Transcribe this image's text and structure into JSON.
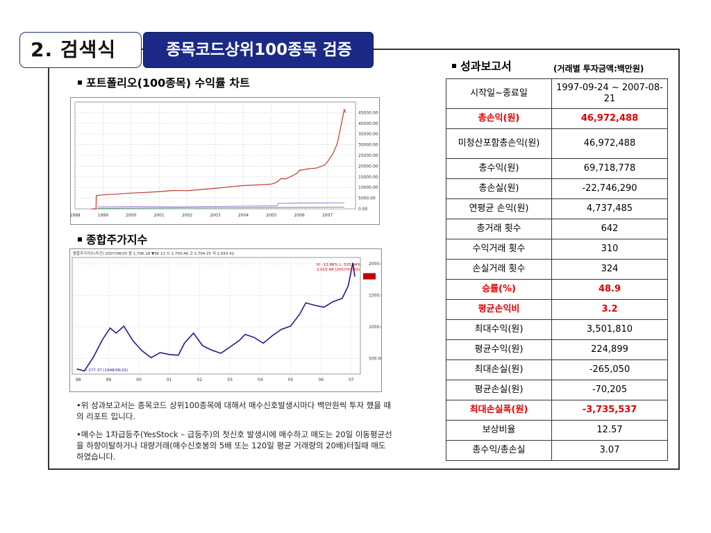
{
  "header": {
    "title": "2. 검색식",
    "banner": "종목코드상위100종목 검증"
  },
  "portfolio": {
    "label": "포트폴리오(100종목) 수익률 차트",
    "chart_data": {
      "type": "line",
      "title": "",
      "xlabel": "",
      "ylabel": "",
      "x_tick_labels": [
        "1998",
        "1999",
        "2000",
        "2001",
        "2002",
        "2003",
        "2004",
        "2005",
        "2006",
        "2007"
      ],
      "y_tick_labels": [
        "45000.00",
        "40000.00",
        "35000.00",
        "30000.00",
        "25000.00",
        "20000.00",
        "15000.00",
        "10000.00",
        "5000.00",
        "0.00"
      ],
      "ylim": [
        0,
        50000
      ],
      "xlim": [
        1998,
        2008
      ],
      "series": [
        {
          "x": [
            1998.6,
            1998.75,
            1998.76,
            1999.0,
            1999.5,
            2000.0,
            2000.5,
            2001.0,
            2001.5,
            2002.0,
            2002.5,
            2003.0,
            2003.5,
            2004.0,
            2004.5,
            2005.0,
            2005.2,
            2005.35,
            2005.5,
            2005.7,
            2005.9,
            2006.0,
            2006.3,
            2006.6,
            2006.9,
            2007.0,
            2007.2,
            2007.35,
            2007.5,
            2007.6,
            2007.65
          ],
          "y": [
            0,
            0,
            6200,
            6600,
            6900,
            7400,
            7700,
            8100,
            8600,
            8500,
            9100,
            9600,
            10300,
            10900,
            11200,
            11600,
            12500,
            14200,
            14000,
            15200,
            16500,
            18000,
            18700,
            19100,
            20500,
            22000,
            26000,
            30500,
            40000,
            46500,
            45000
          ]
        },
        {
          "x": [
            1998.8,
            2000,
            2002,
            2004,
            2006,
            2007.6
          ],
          "y": [
            200,
            400,
            500,
            600,
            700,
            800
          ]
        },
        {
          "x": [
            1998.8,
            2000,
            2002,
            2004,
            2005.2,
            2005.25,
            2006,
            2007.6
          ],
          "y": [
            900,
            1100,
            1000,
            1300,
            1400,
            2600,
            2700,
            2900
          ]
        }
      ]
    }
  },
  "kospi": {
    "label": "종합주가지수",
    "info_text": "종합주가지수(주간) 2007/08/20  종 1,796.18 ▼96.11  시 1,700.48 고 1,794.25 저 1,693.42",
    "hi_text": "H: -13.86%  L: 525.94%",
    "hi_text2": "2,015.48 (2007/07/20)",
    "low_text": "← 277.37 (1998/06/15)",
    "chart_data": {
      "type": "line",
      "title": "",
      "xlabel": "",
      "ylabel": "",
      "x_tick_labels": [
        "98",
        "99",
        "00",
        "01",
        "02",
        "03",
        "04",
        "05",
        "06",
        "07"
      ],
      "y_tick_labels": [
        "2000.00",
        "1500.00",
        "1000.00",
        "500.00"
      ],
      "ylim": [
        250,
        2100
      ],
      "xlim": [
        1998.3,
        2007.8
      ],
      "values_labeled": {
        "high": 2015.48,
        "low": 277.37,
        "last": 1796.18
      },
      "series": [
        {
          "name": "",
          "x": [
            1998.45,
            1998.7,
            1999.0,
            1999.3,
            1999.55,
            1999.75,
            2000.0,
            2000.3,
            2000.6,
            2000.9,
            2001.2,
            2001.5,
            2001.8,
            2002.0,
            2002.3,
            2002.6,
            2002.9,
            2003.2,
            2003.5,
            2003.8,
            2004.0,
            2004.3,
            2004.6,
            2004.9,
            2005.2,
            2005.5,
            2005.8,
            2006.0,
            2006.3,
            2006.6,
            2006.9,
            2007.2,
            2007.4,
            2007.55,
            2007.62
          ],
          "y": [
            330,
            300,
            520,
            800,
            980,
            900,
            1010,
            780,
            620,
            510,
            590,
            560,
            550,
            740,
            900,
            700,
            630,
            580,
            680,
            780,
            880,
            830,
            740,
            860,
            960,
            1010,
            1200,
            1380,
            1340,
            1310,
            1400,
            1450,
            1650,
            2015,
            1796
          ]
        }
      ]
    }
  },
  "notes": [
    "•위 성과보고서는 종목코드 상위100종목에 대해서 매수신호발생시마다 백만원씩 투자 했을 때의 리포트 입니다.",
    "•매수는 1차급등주(YesStock – 급등주)의 첫신호 발생시에 매수하고 매도는 20일 이동평균선을 하향이탈하거나 대량거래(매수신호봉의 5배 또는 120일 평균 거래량의 20배)터질때 매도하였습니다."
  ],
  "report": {
    "title": "성과보고서",
    "unit_note": "(거래별 투자금액:백만원)",
    "rows": [
      {
        "label": "시작일~종료일",
        "value": "1997-09-24 ~ 2007-08-21",
        "highlight": false
      },
      {
        "label": "총손익(원)",
        "value": "46,972,488",
        "highlight": true
      },
      {
        "label": "미청산포함총손익(원)",
        "value": "46,972,488",
        "highlight": false
      },
      {
        "label": "총수익(원)",
        "value": "69,718,778",
        "highlight": false
      },
      {
        "label": "총손실(원)",
        "value": "-22,746,290",
        "highlight": false
      },
      {
        "label": "연평균 손익(원)",
        "value": "4,737,485",
        "highlight": false
      },
      {
        "label": "총거래 횟수",
        "value": "642",
        "highlight": false
      },
      {
        "label": "수익거래 횟수",
        "value": "310",
        "highlight": false
      },
      {
        "label": "손실거래 횟수",
        "value": "324",
        "highlight": false
      },
      {
        "label": "승률(%)",
        "value": "48.9",
        "highlight": true
      },
      {
        "label": "평균손익비",
        "value": "3.2",
        "highlight": true
      },
      {
        "label": "최대수익(원)",
        "value": "3,501,810",
        "highlight": false
      },
      {
        "label": "평균수익(원)",
        "value": "224,899",
        "highlight": false
      },
      {
        "label": "최대손실(원)",
        "value": "-265,050",
        "highlight": false
      },
      {
        "label": "평균손실(원)",
        "value": "-70,205",
        "highlight": false
      },
      {
        "label": "최대손실폭(원)",
        "value": "-3,735,537",
        "highlight": true
      },
      {
        "label": "보상비율",
        "value": "12.57",
        "highlight": false
      },
      {
        "label": "총수익/총손실",
        "value": "3.07",
        "highlight": false
      }
    ]
  },
  "colors": {
    "banner_bg": "#1b2a86",
    "highlight_text": "#e00000",
    "portfolio_line": "#c0392b",
    "kospi_line": "#1a1a8c"
  }
}
